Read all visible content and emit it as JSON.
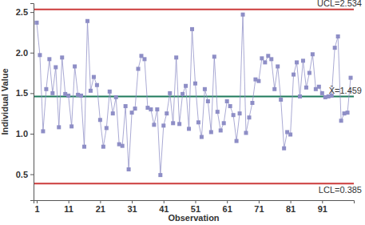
{
  "chart_data": {
    "type": "line",
    "x_label": "Observation",
    "y_label": "Individual Value",
    "x": [
      1,
      2,
      3,
      4,
      5,
      6,
      7,
      8,
      9,
      10,
      11,
      12,
      13,
      14,
      15,
      16,
      17,
      18,
      19,
      20,
      21,
      22,
      23,
      24,
      25,
      26,
      27,
      28,
      29,
      30,
      31,
      32,
      33,
      34,
      35,
      36,
      37,
      38,
      39,
      40,
      41,
      42,
      43,
      44,
      45,
      46,
      47,
      48,
      49,
      50,
      51,
      52,
      53,
      54,
      55,
      56,
      57,
      58,
      59,
      60,
      61,
      62,
      63,
      64,
      65,
      66,
      67,
      68,
      69,
      70,
      71,
      72,
      73,
      74,
      75,
      76,
      77,
      78,
      79,
      80,
      81,
      82,
      83,
      84,
      85,
      86,
      87,
      88,
      89,
      90,
      91,
      92,
      93,
      94,
      95,
      96,
      97,
      98,
      99,
      100
    ],
    "series": [
      {
        "name": "Individual Value",
        "color": "#8e8ec6",
        "marker": "square",
        "line_style": "solid",
        "values": [
          2.37,
          1.97,
          1.03,
          1.55,
          1.92,
          1.5,
          1.82,
          1.08,
          1.94,
          1.49,
          1.47,
          1.09,
          1.83,
          1.48,
          1.47,
          0.84,
          2.39,
          1.53,
          1.7,
          1.6,
          1.17,
          0.84,
          1.07,
          1.52,
          1.25,
          1.45,
          0.87,
          0.85,
          1.34,
          0.56,
          1.26,
          1.31,
          1.8,
          1.96,
          1.92,
          1.32,
          1.3,
          1.11,
          1.3,
          0.49,
          1.1,
          1.25,
          1.5,
          1.13,
          1.94,
          1.12,
          1.49,
          1.59,
          1.06,
          2.29,
          1.62,
          1.14,
          0.96,
          1.55,
          1.4,
          1.02,
          1.95,
          1.27,
          1.04,
          1.13,
          1.4,
          1.34,
          1.23,
          0.91,
          1.25,
          2.47,
          1.01,
          1.2,
          1.38,
          1.67,
          1.65,
          1.93,
          1.88,
          1.96,
          1.92,
          1.55,
          1.83,
          1.42,
          0.82,
          1.02,
          0.99,
          1.73,
          1.88,
          1.46,
          1.9,
          1.57,
          1.75,
          1.98,
          1.55,
          1.58,
          1.5,
          1.45,
          1.46,
          1.47,
          2.06,
          2.2,
          1.16,
          1.25,
          1.26,
          1.69
        ]
      }
    ],
    "reference_lines": [
      {
        "value": 2.534,
        "label": "UCL=2.534",
        "color": "#cc3b3b"
      },
      {
        "value": 1.459,
        "label": "X̄=1.459",
        "color": "#1f7a5c"
      },
      {
        "value": 0.385,
        "label": "LCL=0.385",
        "color": "#cc3b3b"
      }
    ],
    "xlim": [
      0,
      101
    ],
    "ylim": [
      0.18,
      2.61
    ],
    "xticks": [
      1,
      11,
      21,
      31,
      41,
      51,
      61,
      71,
      81,
      91
    ],
    "yticks": [
      0.5,
      {
        "value": 1.0,
        "label": "1.0"
      },
      1.5,
      {
        "value": 2.0,
        "label": "2.0"
      },
      2.5
    ],
    "grid": false
  }
}
